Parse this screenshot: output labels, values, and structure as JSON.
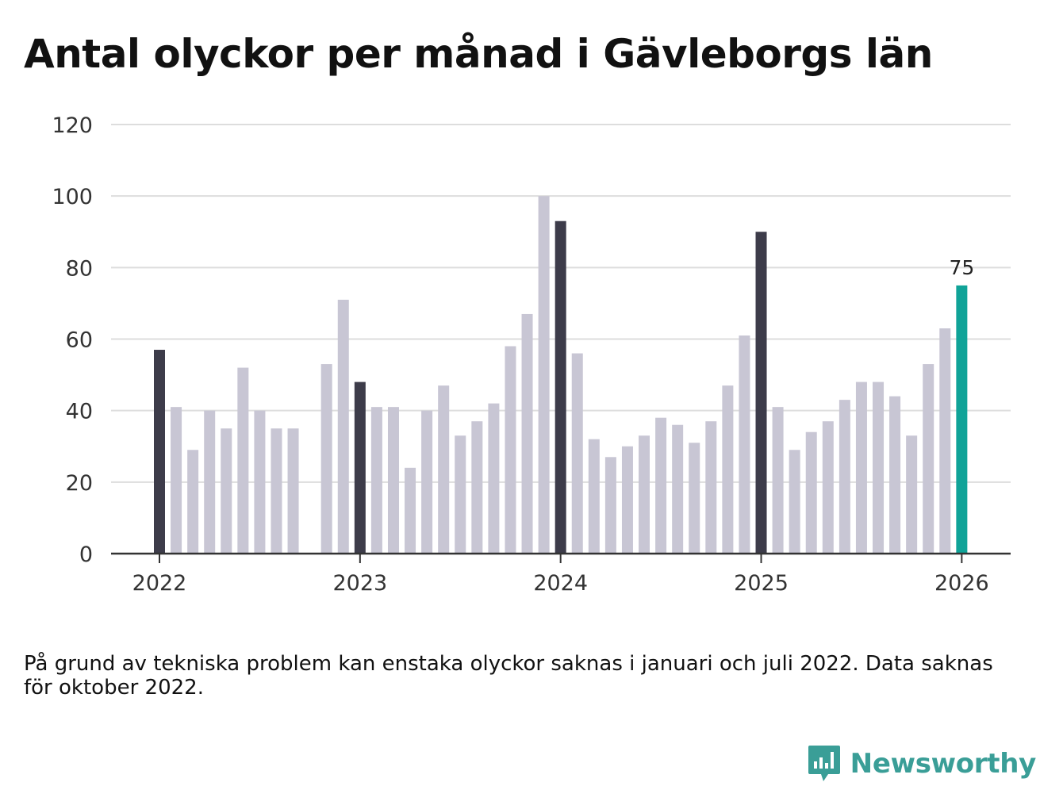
{
  "title": "Antal olyckor per månad i Gävleborgs län",
  "note": "På grund av tekniska problem kan enstaka olyckor saknas i januari och juli 2022. Data saknas för oktober 2022.",
  "brand": {
    "name": "Newsworthy",
    "icon": "newsworthy-logo-icon",
    "color": "#3a9e97"
  },
  "colors": {
    "bar": "#c8c6d4",
    "january": "#3d3c4a",
    "latest": "#10a398",
    "grid": "#dddddd",
    "axis": "#333333"
  },
  "chart_data": {
    "type": "bar",
    "title": "Antal olyckor per månad i Gävleborgs län",
    "xlabel": "",
    "ylabel": "",
    "ylim": [
      0,
      120
    ],
    "yticks": [
      "0",
      "20",
      "40",
      "60",
      "80",
      "100",
      "120"
    ],
    "xticks": [
      "2022",
      "2023",
      "2024",
      "2025",
      "2026"
    ],
    "grid": true,
    "legend": "none",
    "series": [
      {
        "name": "Antal olyckor",
        "values": [
          57,
          41,
          29,
          40,
          35,
          52,
          40,
          35,
          35,
          null,
          53,
          71,
          48,
          41,
          41,
          24,
          40,
          47,
          33,
          37,
          42,
          58,
          67,
          100,
          93,
          56,
          32,
          27,
          30,
          33,
          38,
          36,
          31,
          37,
          47,
          61,
          90,
          41,
          29,
          34,
          37,
          43,
          48,
          48,
          44,
          33,
          53,
          63,
          75
        ]
      }
    ],
    "last_value_label": "75"
  }
}
